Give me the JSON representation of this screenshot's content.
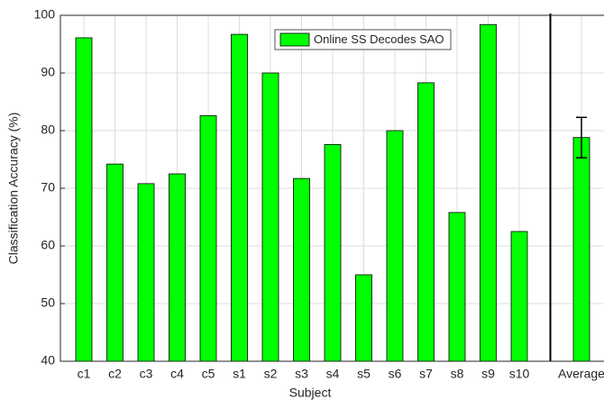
{
  "chart_data": {
    "type": "bar",
    "xlabel": "Subject",
    "ylabel": "Classification Accuracy (%)",
    "categories": [
      "c1",
      "c2",
      "c3",
      "c4",
      "c5",
      "s1",
      "s2",
      "s3",
      "s4",
      "s5",
      "s6",
      "s7",
      "s8",
      "s9",
      "s10",
      null,
      "Average"
    ],
    "series": [
      {
        "name": "Online SS Decodes SAO",
        "color": "#00ff00",
        "values": [
          96.1,
          74.2,
          70.8,
          72.5,
          82.6,
          96.7,
          90,
          71.7,
          77.6,
          55,
          80,
          88.3,
          65.8,
          98.4,
          62.5,
          null,
          78.8
        ],
        "errors": [
          null,
          null,
          null,
          null,
          null,
          null,
          null,
          null,
          null,
          null,
          null,
          null,
          null,
          null,
          null,
          null,
          3.5
        ]
      }
    ],
    "ylim": [
      40,
      100
    ],
    "yticks": [
      40,
      50,
      60,
      70,
      80,
      90,
      100
    ],
    "grid": true,
    "legend": "top"
  }
}
